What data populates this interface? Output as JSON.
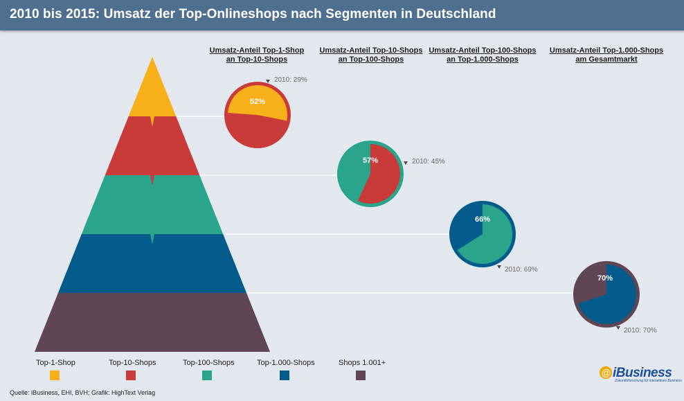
{
  "title": "2010 bis 2015: Umsatz der Top-Onlineshops nach Segmenten in Deutschland",
  "colors": {
    "title_bar": "#4f6f8f",
    "background": "#e3e7ee",
    "top1": "#f7b01a",
    "top10": "#c93a3a",
    "top100": "#2aa58b",
    "top1000": "#035b8c",
    "shops1001": "#5f4655"
  },
  "chart_data": {
    "type": "pie",
    "title": "2010 bis 2015: Umsatz der Top-Onlineshops nach Segmenten in Deutschland",
    "pyramid_segments": [
      "Top-1-Shop",
      "Top-10-Shops",
      "Top-100-Shops",
      "Top-1.000-Shops",
      "Shops 1.001+"
    ],
    "pies": [
      {
        "header_line1": "Umsatz-Anteil Top-1-Shop",
        "header_line2": "an Top-10-Shops",
        "share_2015": 52,
        "label_2015": "52%",
        "label_2010": "2010: 29%",
        "share_2010": 29,
        "highlight_segment": "Top-1-Shop",
        "rest_segment": "Top-10-Shops"
      },
      {
        "header_line1": "Umsatz-Anteil Top-10-Shops",
        "header_line2": "an Top-100-Shops",
        "share_2015": 57,
        "label_2015": "57%",
        "label_2010": "2010: 45%",
        "share_2010": 45,
        "highlight_segment": "Top-10-Shops",
        "rest_segment": "Top-100-Shops"
      },
      {
        "header_line1": "Umsatz-Anteil Top-100-Shops",
        "header_line2": "an Top-1.000-Shops",
        "share_2015": 66,
        "label_2015": "66%",
        "label_2010": "2010: 69%",
        "share_2010": 69,
        "highlight_segment": "Top-100-Shops",
        "rest_segment": "Top-1.000-Shops"
      },
      {
        "header_line1": "Umsatz-Anteil Top-1.000-Shops",
        "header_line2": "am Gesamtmarkt",
        "share_2015": 70,
        "label_2015": "70%",
        "label_2010": "2010: 70%",
        "share_2010": 70,
        "highlight_segment": "Top-1.000-Shops",
        "rest_segment": "Shops 1.001+"
      }
    ]
  },
  "legend": [
    {
      "label": "Top-1-Shop",
      "color": "#f7b01a"
    },
    {
      "label": "Top-10-Shops",
      "color": "#c93a3a"
    },
    {
      "label": "Top-100-Shops",
      "color": "#2aa58b"
    },
    {
      "label": "Top-1.000-Shops",
      "color": "#035b8c"
    },
    {
      "label": "Shops 1.001+",
      "color": "#5f4655"
    }
  ],
  "source": "Quelle: iBusiness, EHI, BVH; Grafik: HighText Verlag",
  "logo": {
    "at": "@",
    "name": "iBusiness",
    "tagline": "Zukunftsforschung für interaktives Business"
  }
}
